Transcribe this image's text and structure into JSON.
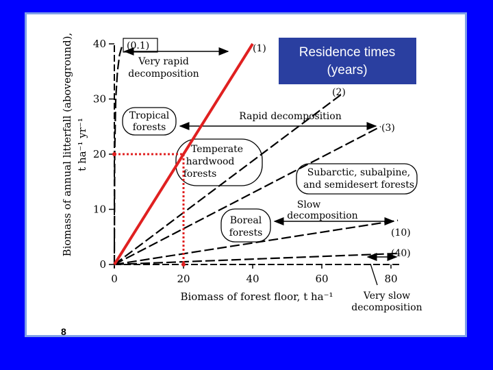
{
  "slide_number": "8",
  "residence_box": {
    "line1": "Residence times",
    "line2": "(years)",
    "color": "#2a3fa0"
  },
  "chart_data": {
    "type": "line",
    "xlabel": "Biomass of forest floor, t ha⁻¹",
    "ylabel_line1": "Biomass of annual litterfall (aboveground),",
    "ylabel_line2": "t ha⁻¹ yr⁻¹",
    "xlim": [
      0,
      85
    ],
    "ylim": [
      0,
      42
    ],
    "x_ticks": [
      "0",
      "20",
      "40",
      "60",
      "80"
    ],
    "y_ticks": [
      "0",
      "10",
      "20",
      "30",
      "40"
    ],
    "series": [
      {
        "name": "(0.1)",
        "residence_years": 0.1,
        "x": [
          0,
          0.1,
          0.4,
          0.9,
          1.5,
          2.4
        ],
        "y": [
          0,
          20,
          30,
          35,
          38,
          40
        ]
      },
      {
        "name": "(1)",
        "residence_years": 1,
        "x": [
          0,
          40
        ],
        "y": [
          0,
          40
        ]
      },
      {
        "name": "(2)",
        "residence_years": 2,
        "x": [
          0,
          66
        ],
        "y": [
          0,
          31
        ]
      },
      {
        "name": "(3)",
        "residence_years": 3,
        "x": [
          0,
          77
        ],
        "y": [
          0,
          25
        ]
      },
      {
        "name": "(10)",
        "residence_years": 10,
        "x": [
          0,
          82
        ],
        "y": [
          0,
          8
        ]
      },
      {
        "name": "(40)",
        "residence_years": 40,
        "x": [
          0,
          82
        ],
        "y": [
          0,
          2
        ]
      }
    ],
    "highlight": {
      "color": "#e02020",
      "line_x": [
        0,
        40
      ],
      "line_y": [
        0,
        40
      ],
      "point_x": 20,
      "point_y": 20
    },
    "regions": [
      {
        "lines": [
          "Very rapid",
          "decomposition"
        ]
      },
      {
        "lines": [
          "Rapid decomposition"
        ]
      },
      {
        "lines": [
          "Slow",
          "decomposition"
        ]
      },
      {
        "lines": [
          "Very slow",
          "decomposition"
        ]
      }
    ],
    "forest_types": [
      {
        "lines": [
          "Tropical",
          "forests"
        ]
      },
      {
        "lines": [
          "Temperate",
          "hardwood",
          "forests"
        ]
      },
      {
        "lines": [
          "Subarctic, subalpine,",
          "and semidesert forests"
        ]
      },
      {
        "lines": [
          "Boreal",
          "forests"
        ]
      }
    ]
  }
}
